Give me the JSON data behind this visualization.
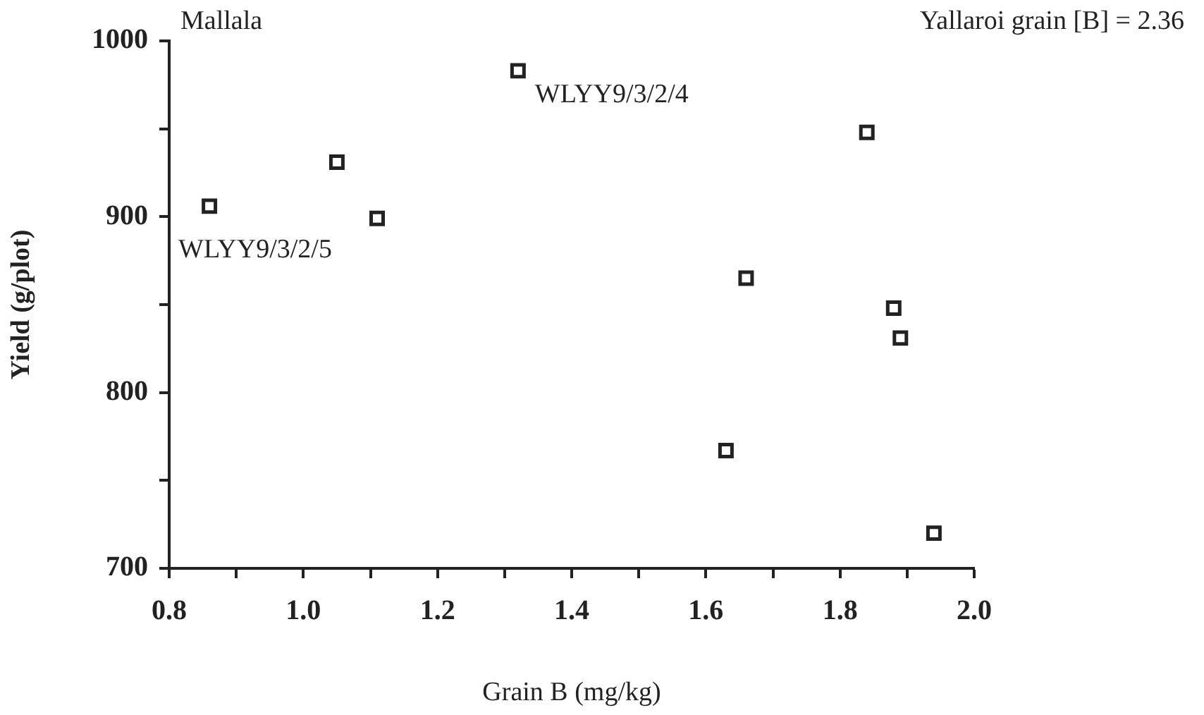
{
  "chart_data": {
    "type": "scatter",
    "xlabel": "Grain B (mg/kg)",
    "ylabel": "Yield (g/plot)",
    "annotations": [
      "Mallala",
      "Yallaroi grain [B] = 2.36",
      {
        "text": "WLYY9/3/2/4",
        "x": 1.32,
        "y": 983
      },
      {
        "text": "WLYY9/3/2/5",
        "x": 0.86,
        "y": 906
      }
    ],
    "series": [
      {
        "color": "#222222",
        "x": [
          0.86,
          1.05,
          1.11,
          1.32,
          1.66,
          1.63,
          1.84,
          1.88,
          1.89,
          1.94
        ],
        "values": [
          906,
          931,
          899,
          983,
          865,
          767,
          948,
          848,
          831,
          720
        ]
      }
    ],
    "xlim": [
      0.8,
      2.0
    ],
    "xticks": [
      0.8,
      {
        "value": 0.9,
        "label": null
      },
      "1.0",
      {
        "value": 1.1,
        "label": null
      },
      1.2,
      {
        "value": 1.3,
        "label": null
      },
      1.4,
      {
        "value": 1.5,
        "label": null
      },
      1.6,
      {
        "value": 1.7,
        "label": null
      },
      1.8,
      {
        "value": 1.9,
        "label": null
      },
      "2.0"
    ],
    "ylim": [
      700,
      1000
    ],
    "yticks": [
      700,
      {
        "value": 750,
        "label": null
      },
      800,
      {
        "value": 850,
        "label": null
      },
      900,
      {
        "value": 950,
        "label": null
      },
      1000
    ],
    "grid": false,
    "legend": false,
    "marker": "square",
    "line_style": "none"
  }
}
